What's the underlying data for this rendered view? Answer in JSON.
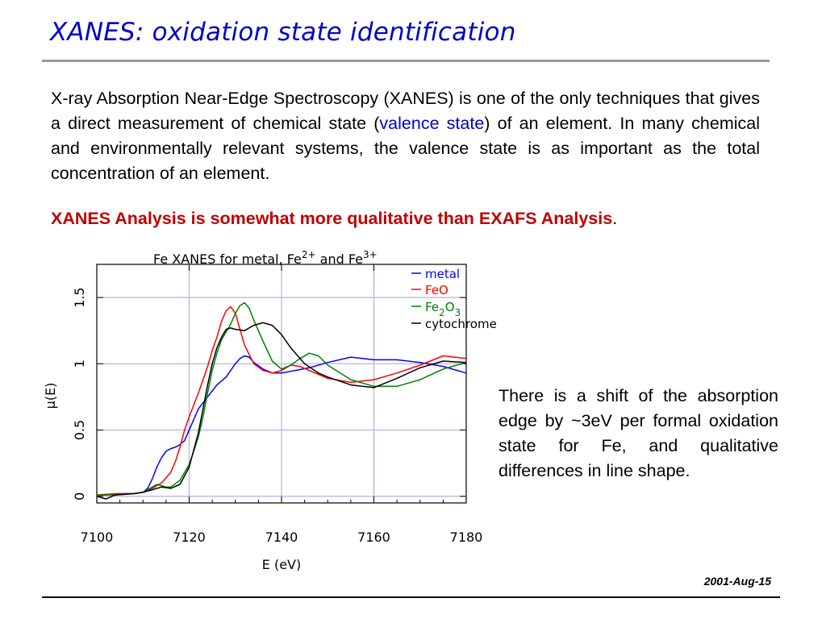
{
  "slide": {
    "title": "XANES: oxidation state identification",
    "paragraph": {
      "part1": "X-ray Absorption Near-Edge Spectroscopy (XANES) is one of the only techniques that gives a direct measurement of chemical state (",
      "link": "valence state",
      "part2": ") of an element.  In many chemical and environmentally relevant systems, the valence state is as important as the total concentration of an element."
    },
    "highlight": "XANES Analysis is somewhat more qualitative than EXAFS Analysis",
    "highlight_end": ".",
    "side_text": "There is a shift of the absorption edge by ~3eV per formal oxidation state for Fe, and qualitative differences in line shape.",
    "date": "2001-Aug-15"
  },
  "chart_data": {
    "type": "line",
    "title": "Fe XANES for metal, Fe2+ and Fe3+",
    "title_parts": {
      "a": "Fe XANES for metal, Fe",
      "sup1": "2+",
      "b": " and Fe",
      "sup2": "3+"
    },
    "xlabel": "E (eV)",
    "ylabel": "μ(E)",
    "xlim": [
      7100,
      7180
    ],
    "ylim": [
      -0.05,
      1.75
    ],
    "xticks": [
      7100,
      7120,
      7140,
      7160,
      7180
    ],
    "yticks": [
      0,
      0.5,
      1,
      1.5
    ],
    "xtick_labels": [
      "7100",
      "7120",
      "7140",
      "7160",
      "7180"
    ],
    "ytick_labels": [
      "0",
      "0.5",
      "1",
      "1.5"
    ],
    "grid": true,
    "legend_position": "top-right",
    "legend": {
      "metal": "metal",
      "feo": "FeO",
      "fe2o3_a": "Fe",
      "fe2o3_s1": "2",
      "fe2o3_b": "O",
      "fe2o3_s2": "3",
      "cyto": "cytochrome"
    },
    "series": [
      {
        "name": "metal",
        "color": "#0000ff",
        "x": [
          7100,
          7102,
          7105,
          7108,
          7110,
          7111,
          7112,
          7113,
          7114,
          7115,
          7116,
          7117,
          7118,
          7119,
          7120,
          7121,
          7122,
          7124,
          7126,
          7128,
          7129,
          7130,
          7131,
          7132,
          7133,
          7134,
          7136,
          7138,
          7140,
          7143,
          7146,
          7150,
          7155,
          7160,
          7165,
          7170,
          7175,
          7180
        ],
        "y": [
          0.01,
          0.01,
          0.02,
          0.02,
          0.03,
          0.06,
          0.13,
          0.22,
          0.29,
          0.34,
          0.36,
          0.37,
          0.39,
          0.42,
          0.5,
          0.58,
          0.66,
          0.75,
          0.84,
          0.9,
          0.95,
          1.0,
          1.04,
          1.06,
          1.05,
          1.01,
          0.96,
          0.93,
          0.93,
          0.95,
          0.97,
          1.01,
          1.05,
          1.03,
          1.03,
          1.01,
          0.98,
          0.93
        ]
      },
      {
        "name": "FeO",
        "color": "#ff0000",
        "x": [
          7100,
          7104,
          7108,
          7110,
          7112,
          7114,
          7116,
          7117,
          7118,
          7119,
          7120,
          7122,
          7124,
          7125,
          7126,
          7127,
          7128,
          7129,
          7130,
          7132,
          7134,
          7136,
          7138,
          7140,
          7142,
          7144,
          7146,
          7148,
          7150,
          7155,
          7160,
          7165,
          7170,
          7175,
          7180
        ],
        "y": [
          0.01,
          0.02,
          0.02,
          0.03,
          0.06,
          0.1,
          0.18,
          0.26,
          0.37,
          0.5,
          0.6,
          0.78,
          0.98,
          1.1,
          1.2,
          1.32,
          1.4,
          1.43,
          1.38,
          1.14,
          1.0,
          0.95,
          0.93,
          0.95,
          0.99,
          0.98,
          0.95,
          0.92,
          0.89,
          0.86,
          0.88,
          0.93,
          0.99,
          1.06,
          1.04
        ]
      },
      {
        "name": "Fe2O3",
        "color": "#008000",
        "x": [
          7100,
          7104,
          7108,
          7110,
          7112,
          7113,
          7114,
          7115,
          7116,
          7118,
          7120,
          7121,
          7122,
          7123,
          7124,
          7125,
          7126,
          7127,
          7128,
          7129,
          7130,
          7131,
          7132,
          7133,
          7134,
          7136,
          7138,
          7140,
          7142,
          7144,
          7146,
          7148,
          7150,
          7155,
          7160,
          7165,
          7170,
          7175,
          7180
        ],
        "y": [
          0.01,
          0.01,
          0.02,
          0.03,
          0.07,
          0.09,
          0.08,
          0.07,
          0.07,
          0.12,
          0.24,
          0.34,
          0.45,
          0.6,
          0.78,
          0.95,
          1.08,
          1.18,
          1.24,
          1.3,
          1.38,
          1.44,
          1.46,
          1.42,
          1.33,
          1.17,
          1.02,
          0.96,
          0.99,
          1.04,
          1.08,
          1.06,
          0.99,
          0.88,
          0.83,
          0.83,
          0.88,
          0.96,
          1.01
        ]
      },
      {
        "name": "cytochrome",
        "color": "#000000",
        "x": [
          7100,
          7101,
          7102,
          7104,
          7108,
          7110,
          7112,
          7114,
          7116,
          7118,
          7120,
          7121,
          7122,
          7123,
          7124,
          7125,
          7126,
          7127,
          7128,
          7129,
          7130,
          7132,
          7134,
          7136,
          7138,
          7140,
          7142,
          7145,
          7148,
          7150,
          7155,
          7160,
          7165,
          7170,
          7175,
          7180
        ],
        "y": [
          0.0,
          -0.01,
          -0.02,
          0.01,
          0.02,
          0.03,
          0.05,
          0.07,
          0.06,
          0.09,
          0.22,
          0.35,
          0.48,
          0.66,
          0.84,
          1.0,
          1.12,
          1.2,
          1.26,
          1.27,
          1.26,
          1.25,
          1.29,
          1.31,
          1.29,
          1.22,
          1.12,
          1.0,
          0.93,
          0.9,
          0.84,
          0.82,
          0.89,
          0.97,
          1.02,
          1.01
        ]
      }
    ]
  }
}
